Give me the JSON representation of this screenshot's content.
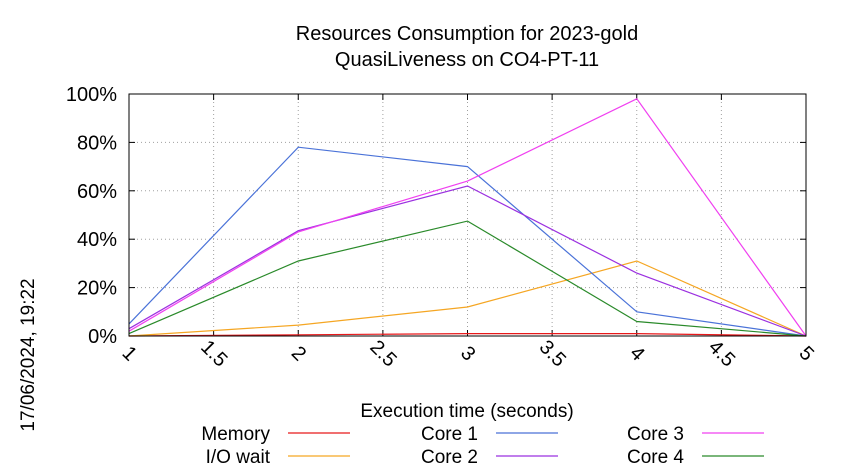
{
  "chart_data": {
    "type": "line",
    "title": "Resources Consumption for 2023-gold",
    "subtitle": "QuasiLiveness on CO4-PT-11",
    "xlabel": "Execution time (seconds)",
    "ylabel": "",
    "xlim": [
      1,
      5
    ],
    "ylim": [
      0,
      100
    ],
    "x_ticks": [
      "1",
      "1.5",
      "2",
      "2.5",
      "3",
      "3.5",
      "4",
      "4.5",
      "5"
    ],
    "y_ticks": [
      "0%",
      "20%",
      "40%",
      "60%",
      "80%",
      "100%"
    ],
    "grid": true,
    "legend_position": "bottom",
    "timestamp": "17/06/2024, 19:22",
    "series": [
      {
        "name": "Memory",
        "color": "#e8191b",
        "x": [
          1,
          2,
          3,
          4,
          5
        ],
        "y": [
          0,
          0.5,
          1,
          1,
          0
        ]
      },
      {
        "name": "I/O wait",
        "color": "#f5a623",
        "x": [
          1,
          2,
          3,
          4,
          5
        ],
        "y": [
          0,
          4.5,
          12,
          31,
          0
        ]
      },
      {
        "name": "Core 1",
        "color": "#4a72d8",
        "x": [
          1,
          2,
          3,
          4,
          5
        ],
        "y": [
          5,
          78,
          70,
          10,
          0
        ]
      },
      {
        "name": "Core 2",
        "color": "#9b30e0",
        "x": [
          1,
          2,
          3,
          4,
          5
        ],
        "y": [
          3,
          43.5,
          62,
          26,
          0
        ]
      },
      {
        "name": "Core 3",
        "color": "#f040f0",
        "x": [
          1,
          2,
          3,
          4,
          5
        ],
        "y": [
          2,
          43,
          64,
          98,
          0
        ]
      },
      {
        "name": "Core 4",
        "color": "#2a8a2a",
        "x": [
          1,
          2,
          3,
          4,
          5
        ],
        "y": [
          1,
          31,
          47.5,
          6,
          0
        ]
      }
    ]
  }
}
